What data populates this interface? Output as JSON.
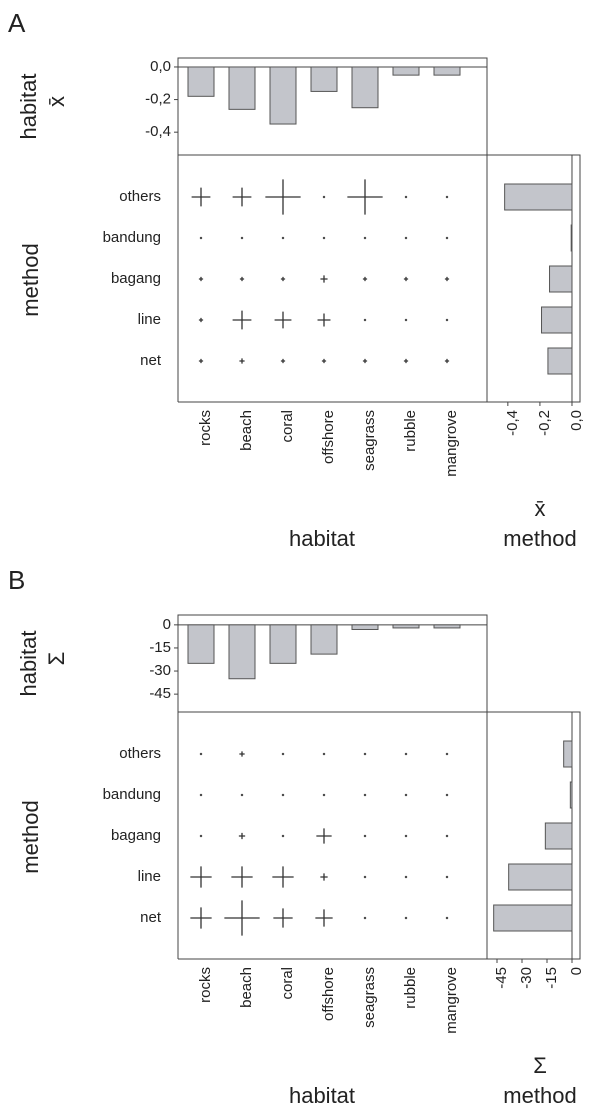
{
  "chart_data": [
    {
      "type": "bar",
      "panel": "A",
      "ylabel": "habitat",
      "ylabel2": "x̄",
      "values": [
        -0.18,
        -0.26,
        -0.35,
        -0.15,
        -0.25,
        -0.05,
        -0.05
      ],
      "color": "#c3c5cb",
      "ylim": [
        -0.54,
        0.055
      ],
      "yticks": [
        {
          "value": 0,
          "label": "0,0"
        },
        {
          "value": -0.2,
          "label": "-0,2"
        },
        {
          "value": -0.4,
          "label": "-0,4"
        }
      ]
    },
    {
      "type": "cross",
      "xlabel": "habitat",
      "ylabel": "method",
      "categories": [
        "rocks",
        "beach",
        "coral",
        "offshore",
        "seagrass",
        "rubble",
        "mangrove"
      ],
      "rows": [
        "others",
        "bandung",
        "bagang",
        "line",
        "net"
      ],
      "values": [
        [
          -0.18,
          -0.18,
          -0.35,
          -0.01,
          -0.35,
          -0.01,
          -0.01
        ],
        [
          -0.01,
          -0.01,
          -0.01,
          -0.01,
          -0.01,
          -0.01,
          -0.01
        ],
        [
          -0.03,
          -0.03,
          -0.03,
          -0.06,
          -0.03,
          -0.03,
          -0.03
        ],
        [
          -0.03,
          -0.18,
          -0.16,
          -0.12,
          -0.01,
          -0.01,
          -0.01
        ],
        [
          -0.03,
          -0.04,
          -0.03,
          -0.03,
          -0.03,
          -0.03,
          -0.03
        ]
      ]
    },
    {
      "type": "hbar",
      "xlabel": "x̄",
      "xlabel2": "method",
      "values": [
        -0.42,
        -0.005,
        -0.14,
        -0.19,
        -0.15
      ],
      "color": "#c3c5cb",
      "xlim": [
        -0.53,
        0.05
      ],
      "xticks": [
        {
          "value": -0.4,
          "label": "-0,4"
        },
        {
          "value": -0.2,
          "label": "-0,2"
        },
        {
          "value": 0,
          "label": "0,0"
        }
      ]
    },
    {
      "type": "bar",
      "panel": "B",
      "ylabel": "habitat",
      "ylabel2": "Σ",
      "values": [
        -25,
        -35,
        -25,
        -19,
        -3,
        -2,
        -2
      ],
      "color": "#c3c5cb",
      "ylim": [
        -56.6,
        6.4
      ],
      "yticks": [
        0,
        -15,
        -30,
        -45
      ]
    },
    {
      "type": "cross",
      "xlabel": "habitat",
      "ylabel": "method",
      "categories": [
        "rocks",
        "beach",
        "coral",
        "offshore",
        "seagrass",
        "rubble",
        "mangrove"
      ],
      "rows": [
        "others",
        "bandung",
        "bagang",
        "line",
        "net"
      ],
      "values": [
        [
          -1,
          -4,
          -1,
          -1,
          -1,
          -1,
          -1
        ],
        [
          -1,
          -1,
          -1,
          -1,
          -1,
          -1,
          -1
        ],
        [
          -1,
          -5,
          -1,
          -14,
          -1,
          -1,
          -1
        ],
        [
          -20,
          -20,
          -20,
          -6,
          -1,
          -1,
          -1
        ],
        [
          -20,
          -34,
          -18,
          -16,
          -1,
          -1,
          -1
        ]
      ]
    },
    {
      "type": "hbar",
      "xlabel": "Σ",
      "xlabel2": "method",
      "values": [
        -5,
        -1,
        -16,
        -38,
        -47
      ],
      "color": "#c3c5cb",
      "xlim": [
        -51,
        4.8
      ],
      "xticks": [
        -45,
        -30,
        -15,
        0
      ]
    }
  ]
}
